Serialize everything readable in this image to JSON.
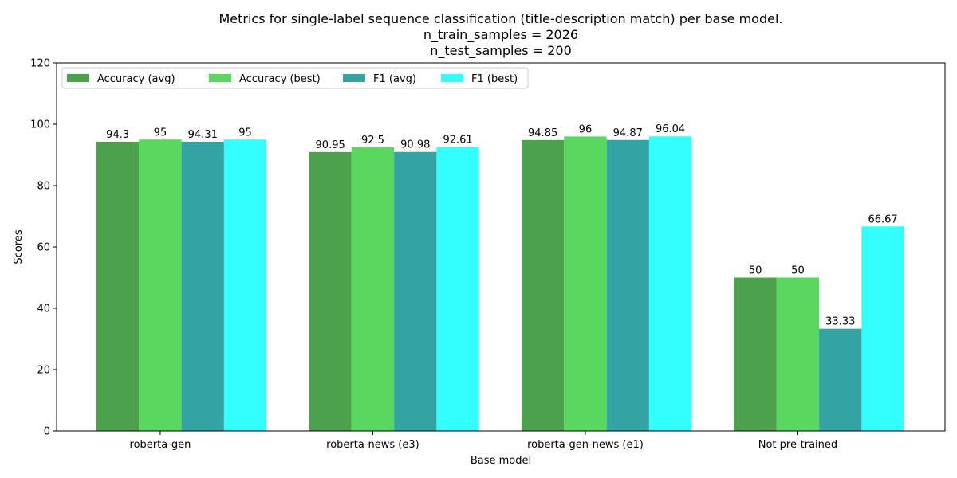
{
  "chart_data": {
    "type": "bar",
    "title": [
      "Metrics for single-label sequence classification (title-description match) per base model.",
      "n_train_samples = 2026",
      "n_test_samples = 200"
    ],
    "xlabel": "Base model",
    "ylabel": "Scores",
    "ylim": [
      0,
      120
    ],
    "yticks": [
      0,
      20,
      40,
      60,
      80,
      100,
      120
    ],
    "grid": false,
    "legend_position": "top-left",
    "categories": [
      "roberta-gen",
      "roberta-news (e3)",
      "roberta-gen-news (e1)",
      "Not pre-trained"
    ],
    "series": [
      {
        "name": "Accuracy (avg)",
        "color": "#4ca24c",
        "values": [
          94.3,
          90.95,
          94.85,
          50
        ]
      },
      {
        "name": "Accuracy (best)",
        "color": "#5ad75f",
        "values": [
          95,
          92.5,
          96,
          50
        ]
      },
      {
        "name": "F1 (avg)",
        "color": "#33a3a3",
        "values": [
          94.31,
          90.98,
          94.87,
          33.33
        ]
      },
      {
        "name": "F1 (best)",
        "color": "#33ffff",
        "values": [
          95,
          92.61,
          96.04,
          66.67
        ]
      }
    ]
  }
}
